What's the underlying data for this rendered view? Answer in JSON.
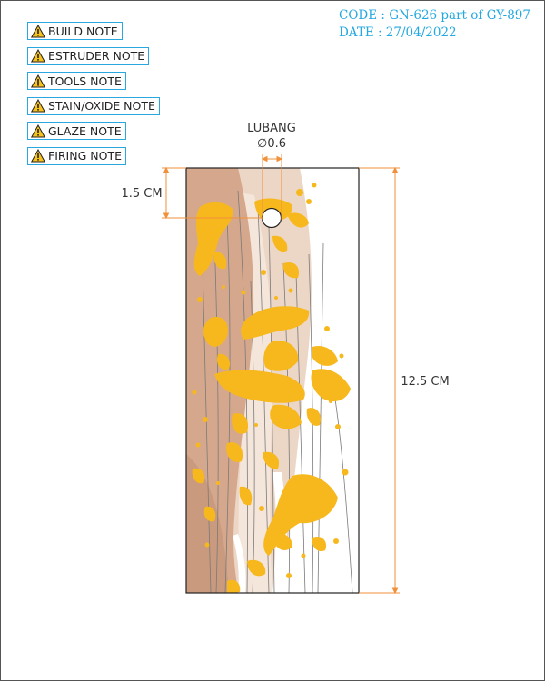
{
  "notes": [
    {
      "label": "BUILD NOTE"
    },
    {
      "label": "ESTRUDER NOTE"
    },
    {
      "label": "TOOLS NOTE"
    },
    {
      "label": "STAIN/OXIDE NOTE"
    },
    {
      "label": "GLAZE NOTE"
    },
    {
      "label": "FIRING NOTE"
    }
  ],
  "header": {
    "code": "CODE : GN-626 part of GY-897",
    "date": "DATE : 27/04/2022"
  },
  "dimensions": {
    "hole_label": "LUBANG",
    "hole_diameter": "∅0.6",
    "top_offset": "1.5 CM",
    "height": "12.5 CM"
  },
  "colors": {
    "accent": "#29a8e0",
    "dimension": "#f0903a",
    "glaze": "#f7b81e",
    "stain_dark": "#d7ab92",
    "stain_light": "#ead2c2"
  },
  "icons": {
    "warning": "warning-triangle-icon"
  }
}
